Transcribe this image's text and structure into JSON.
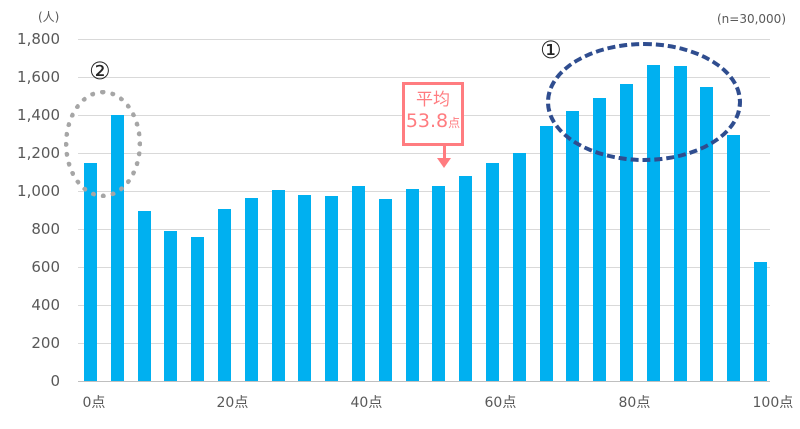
{
  "chart_data": {
    "type": "bar",
    "title": "",
    "xlabel": "",
    "ylabel": "(人)",
    "sample_note": "(n=30,000)",
    "ylim": [
      0,
      1800
    ],
    "yticks": [
      "0",
      "200",
      "400",
      "600",
      "800",
      "1,000",
      "1,200",
      "1,400",
      "1,600",
      "1,800"
    ],
    "xtick_labels": [
      "0点",
      "20点",
      "40点",
      "60点",
      "80点",
      "100点"
    ],
    "grid": true,
    "legend": null,
    "categories": [
      0,
      4,
      8,
      12,
      16,
      20,
      24,
      28,
      32,
      36,
      40,
      44,
      48,
      52,
      56,
      60,
      64,
      68,
      72,
      76,
      80,
      84,
      88,
      92,
      96,
      100
    ],
    "values": [
      1150,
      1400,
      895,
      790,
      758,
      905,
      963,
      1005,
      979,
      974,
      1026,
      958,
      1011,
      1026,
      1079,
      1147,
      1200,
      1342,
      1421,
      1489,
      1563,
      1663,
      1658,
      1547,
      1295,
      626
    ],
    "bar_color": "#00b0f0",
    "annotations": [
      {
        "type": "callout",
        "label": "平均",
        "value": "53.8",
        "unit": "点",
        "color": "#ff7c80"
      },
      {
        "type": "ellipse-dashed",
        "marker": "①",
        "covers": "72-92点",
        "color": "#2f4d8f"
      },
      {
        "type": "ellipse-dotted",
        "marker": "②",
        "covers": "0-4点",
        "color": "#a6a6a6"
      }
    ]
  },
  "labels": {
    "unit": "(人)",
    "n": "(n=30,000)",
    "avg_title": "平均",
    "avg_value": "53.8",
    "avg_unit": "点",
    "marker1": "①",
    "marker2": "②"
  }
}
